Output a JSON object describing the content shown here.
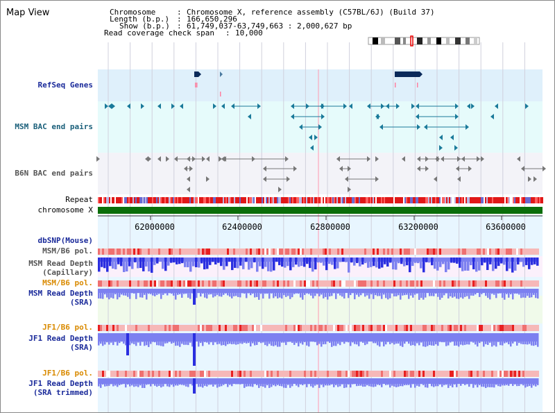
{
  "title": "Map View",
  "info": {
    "rows": [
      {
        "key": "Chromosome",
        "sep": ":",
        "value": "Chromosome X, reference assembly (C57BL/6J) (Build 37)"
      },
      {
        "key": "Length (b.p.)",
        "sep": ":",
        "value": "166,650,296"
      },
      {
        "key": "Show (b.p.)",
        "sep": ":",
        "value": "61,749,037-63,749,663 : 2,000,627 bp"
      },
      {
        "key": "Read coverage check span",
        "sep": ":",
        "value": "10,000"
      }
    ]
  },
  "tracks": {
    "refseq": "RefSeq Genes",
    "msm_bac": "MSM BAC end pairs",
    "b6n_bac": "B6N BAC end pairs",
    "repeat": "Repeat",
    "chromosome": "chromosome X",
    "dbsnp": "dbSNP(Mouse)",
    "msm_b6_pol_1": "MSM/B6 pol.",
    "msm_read_depth_cap_1": "MSM Read Depth",
    "msm_read_depth_cap_2": "(Capillary)",
    "msm_b6_pol_2": "MSM/B6 pol.",
    "msm_read_depth_sra_1": "MSM Read Depth",
    "msm_read_depth_sra_2": "(SRA)",
    "jf1_b6_pol_1": "JF1/B6 pol.",
    "jf1_read_depth_sra_1": "JF1 Read Depth",
    "jf1_read_depth_sra_2": "(SRA)",
    "jf1_b6_pol_2": "JF1/B6 pol.",
    "jf1_read_depth_trim_1": "JF1 Read Depth",
    "jf1_read_depth_trim_2": "(SRA trimmed)"
  },
  "axis": {
    "ticks": [
      "62000000",
      "62400000",
      "62800000",
      "63200000",
      "63600000"
    ]
  },
  "colors": {
    "refseq_bg": "#dff0fb",
    "msm_bg": "#e6fbfb",
    "b6n_bg": "#f3f3f8",
    "chromosome_bar": "#0a6e0a",
    "depth_fill": "#7c80f0",
    "depth_dark": "#2a2ee0",
    "pol_light": "#f6b8b8",
    "pol_dark": "#e82020"
  }
}
